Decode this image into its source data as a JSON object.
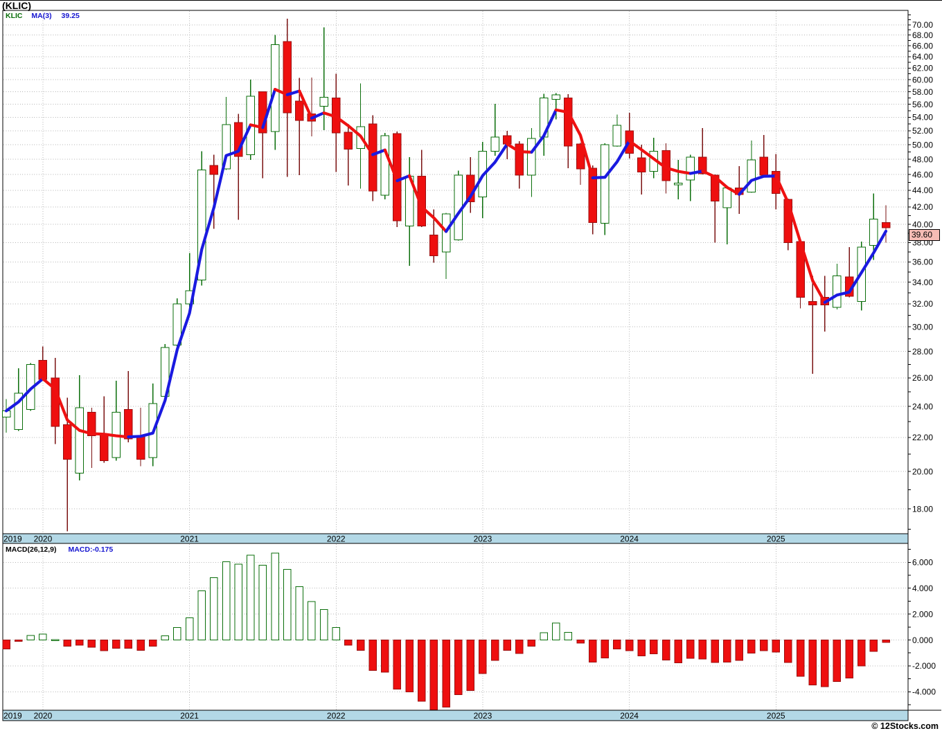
{
  "title": "(KLIC)",
  "legend": {
    "symbol": "KLIC",
    "ma_label": "MA(3)",
    "ma_value": "39.25"
  },
  "price_axis": {
    "labels": [
      "70.00",
      "68.00",
      "66.00",
      "64.00",
      "62.00",
      "60.00",
      "58.00",
      "56.00",
      "54.00",
      "52.00",
      "50.00",
      "48.00",
      "46.00",
      "44.00",
      "42.00",
      "40.00",
      "38.00",
      "36.00",
      "34.00",
      "32.00",
      "30.00",
      "28.00",
      "26.00",
      "24.00",
      "22.00",
      "20.00",
      "18.00"
    ],
    "current_price_label": "39.60"
  },
  "macd_panel": {
    "label": "MACD(26,12,9)",
    "value_label": "MACD:-0.175",
    "axis_labels": [
      "6.000",
      "4.000",
      "2.000",
      "0.000",
      "-2.000",
      "-4.000"
    ]
  },
  "years": [
    {
      "label": "2019",
      "jan_index": -1
    },
    {
      "label": "2020",
      "jan_index": 3
    },
    {
      "label": "2021",
      "jan_index": 15
    },
    {
      "label": "2022",
      "jan_index": 27
    },
    {
      "label": "2023",
      "jan_index": 39
    },
    {
      "label": "2024",
      "jan_index": 51
    },
    {
      "label": "2025",
      "jan_index": 63
    }
  ],
  "copyright": "© 12Stocks.com",
  "colors": {
    "up": "#0a6e0a",
    "up_fill": "#ffffff",
    "up_wick": "#0a6e0a",
    "down": "#ee0f0f",
    "down_border": "#9b0f0f",
    "down_wick": "#7a1010",
    "ma_up": "#1a1ae0",
    "ma_down": "#ee1111",
    "grid": "#b4b4b4",
    "year_bar": "#b3d8e6",
    "tag_bg": "#f6bcb5",
    "macd_pos_border": "#0a6e0a",
    "macd_pos_fill": "#ffffff",
    "macd_neg_fill": "#ee0f0f",
    "macd_neg_border": "#9b0f0f"
  },
  "chart_data": {
    "type": "candlestick+macd",
    "symbol": "KLIC",
    "interval": "monthly",
    "start_month": "2019-10",
    "price_scale": "log",
    "price_axis_range": [
      16.8,
      72.9
    ],
    "macd_axis_range": [
      -5.4,
      7.5
    ],
    "ma_period": 3,
    "ma_last": 39.25,
    "macd_last": -0.175,
    "candle_fields": "open,high,low,close",
    "candles": [
      [
        23.3,
        24.5,
        22.3,
        23.7
      ],
      [
        22.5,
        26.7,
        22.4,
        24.9
      ],
      [
        23.8,
        27.1,
        23.7,
        27.0
      ],
      [
        27.3,
        28.4,
        25.8,
        25.9
      ],
      [
        26.0,
        27.5,
        21.6,
        22.7
      ],
      [
        22.8,
        24.6,
        16.9,
        20.7
      ],
      [
        19.9,
        26.2,
        19.5,
        23.9
      ],
      [
        23.6,
        23.9,
        20.2,
        22.1
      ],
      [
        22.2,
        24.7,
        20.5,
        20.6
      ],
      [
        20.8,
        25.8,
        20.6,
        23.6
      ],
      [
        23.8,
        26.5,
        21.7,
        21.9
      ],
      [
        22.1,
        23.9,
        20.3,
        20.7
      ],
      [
        20.8,
        25.6,
        20.3,
        24.2
      ],
      [
        24.7,
        28.6,
        24.4,
        28.3
      ],
      [
        28.5,
        32.5,
        28.0,
        32.0
      ],
      [
        32.0,
        36.9,
        31.0,
        33.2
      ],
      [
        34.2,
        49.1,
        33.7,
        46.6
      ],
      [
        47.2,
        48.6,
        39.5,
        46.0
      ],
      [
        46.7,
        57.2,
        46.6,
        52.9
      ],
      [
        53.2,
        54.5,
        40.5,
        48.4
      ],
      [
        48.6,
        60.0,
        47.9,
        57.3
      ],
      [
        58.0,
        58.1,
        45.5,
        51.7
      ],
      [
        51.9,
        68.0,
        49.3,
        66.2
      ],
      [
        66.8,
        71.2,
        45.7,
        54.7
      ],
      [
        56.5,
        60.3,
        45.9,
        53.5
      ],
      [
        54.5,
        60.4,
        51.2,
        53.4
      ],
      [
        55.7,
        69.5,
        52.1,
        57.1
      ],
      [
        57.0,
        61.0,
        46.3,
        51.7
      ],
      [
        51.8,
        53.0,
        44.6,
        49.4
      ],
      [
        49.5,
        59.4,
        44.2,
        52.6
      ],
      [
        53.0,
        54.3,
        42.7,
        43.9
      ],
      [
        43.4,
        51.7,
        42.9,
        51.3
      ],
      [
        51.6,
        51.9,
        39.7,
        40.4
      ],
      [
        39.8,
        48.3,
        35.6,
        45.8
      ],
      [
        45.8,
        49.3,
        39.7,
        39.8
      ],
      [
        38.8,
        41.7,
        35.9,
        36.6
      ],
      [
        37.0,
        41.3,
        34.3,
        41.2
      ],
      [
        38.3,
        46.5,
        38.2,
        45.9
      ],
      [
        45.9,
        48.3,
        41.3,
        42.6
      ],
      [
        43.2,
        50.4,
        40.7,
        49.1
      ],
      [
        49.1,
        56.1,
        48.5,
        51.1
      ],
      [
        51.3,
        52.0,
        48.0,
        50.1
      ],
      [
        50.1,
        50.5,
        44.2,
        45.9
      ],
      [
        45.9,
        52.4,
        43.2,
        50.9
      ],
      [
        51.1,
        57.7,
        48.5,
        57.0
      ],
      [
        56.8,
        57.8,
        53.7,
        57.5
      ],
      [
        57.0,
        57.6,
        46.8,
        49.8
      ],
      [
        50.1,
        50.3,
        44.7,
        46.7
      ],
      [
        46.8,
        47.2,
        38.9,
        40.2
      ],
      [
        40.1,
        50.2,
        38.8,
        50.0
      ],
      [
        49.8,
        54.4,
        49.7,
        52.8
      ],
      [
        52.0,
        54.7,
        48.1,
        48.8
      ],
      [
        48.2,
        50.0,
        43.5,
        46.3
      ],
      [
        46.4,
        51.0,
        45.5,
        49.1
      ],
      [
        49.2,
        50.2,
        43.6,
        45.2
      ],
      [
        44.7,
        47.9,
        42.9,
        44.9
      ],
      [
        45.3,
        48.6,
        42.7,
        48.3
      ],
      [
        48.3,
        52.4,
        46.0,
        46.1
      ],
      [
        45.9,
        46.0,
        38.0,
        42.7
      ],
      [
        41.9,
        44.4,
        37.8,
        44.3
      ],
      [
        44.3,
        47.1,
        41.2,
        43.5
      ],
      [
        43.8,
        50.6,
        43.7,
        47.9
      ],
      [
        48.3,
        51.4,
        45.8,
        45.9
      ],
      [
        46.4,
        48.7,
        41.7,
        43.6
      ],
      [
        42.9,
        43.0,
        37.2,
        38.0
      ],
      [
        38.1,
        38.2,
        31.6,
        32.6
      ],
      [
        32.2,
        34.6,
        26.3,
        31.9
      ],
      [
        32.6,
        34.6,
        29.6,
        31.9
      ],
      [
        31.7,
        35.8,
        31.5,
        34.6
      ],
      [
        34.5,
        37.5,
        32.6,
        32.7
      ],
      [
        32.2,
        38.1,
        31.4,
        37.5
      ],
      [
        37.7,
        43.6,
        36.2,
        40.6
      ],
      [
        40.2,
        42.2,
        38.0,
        39.6
      ]
    ],
    "macd": [
      -0.7,
      -0.12,
      0.36,
      0.45,
      0.02,
      -0.48,
      -0.4,
      -0.57,
      -0.84,
      -0.63,
      -0.63,
      -0.8,
      -0.48,
      0.32,
      0.95,
      1.71,
      3.8,
      4.82,
      6.04,
      5.86,
      6.54,
      5.77,
      6.71,
      5.45,
      4.12,
      2.96,
      2.34,
      0.95,
      -0.39,
      -0.8,
      -2.36,
      -2.48,
      -3.79,
      -4.02,
      -4.73,
      -5.4,
      -5.2,
      -4.23,
      -3.91,
      -2.59,
      -1.59,
      -0.8,
      -1.05,
      -0.48,
      0.55,
      1.3,
      0.59,
      -0.25,
      -1.7,
      -1.38,
      -0.7,
      -0.84,
      -1.23,
      -1.07,
      -1.55,
      -1.77,
      -1.41,
      -1.46,
      -1.73,
      -1.7,
      -1.59,
      -1.02,
      -0.84,
      -0.93,
      -1.73,
      -2.8,
      -3.48,
      -3.61,
      -3.2,
      -2.95,
      -2.0,
      -0.88,
      -0.175
    ]
  }
}
